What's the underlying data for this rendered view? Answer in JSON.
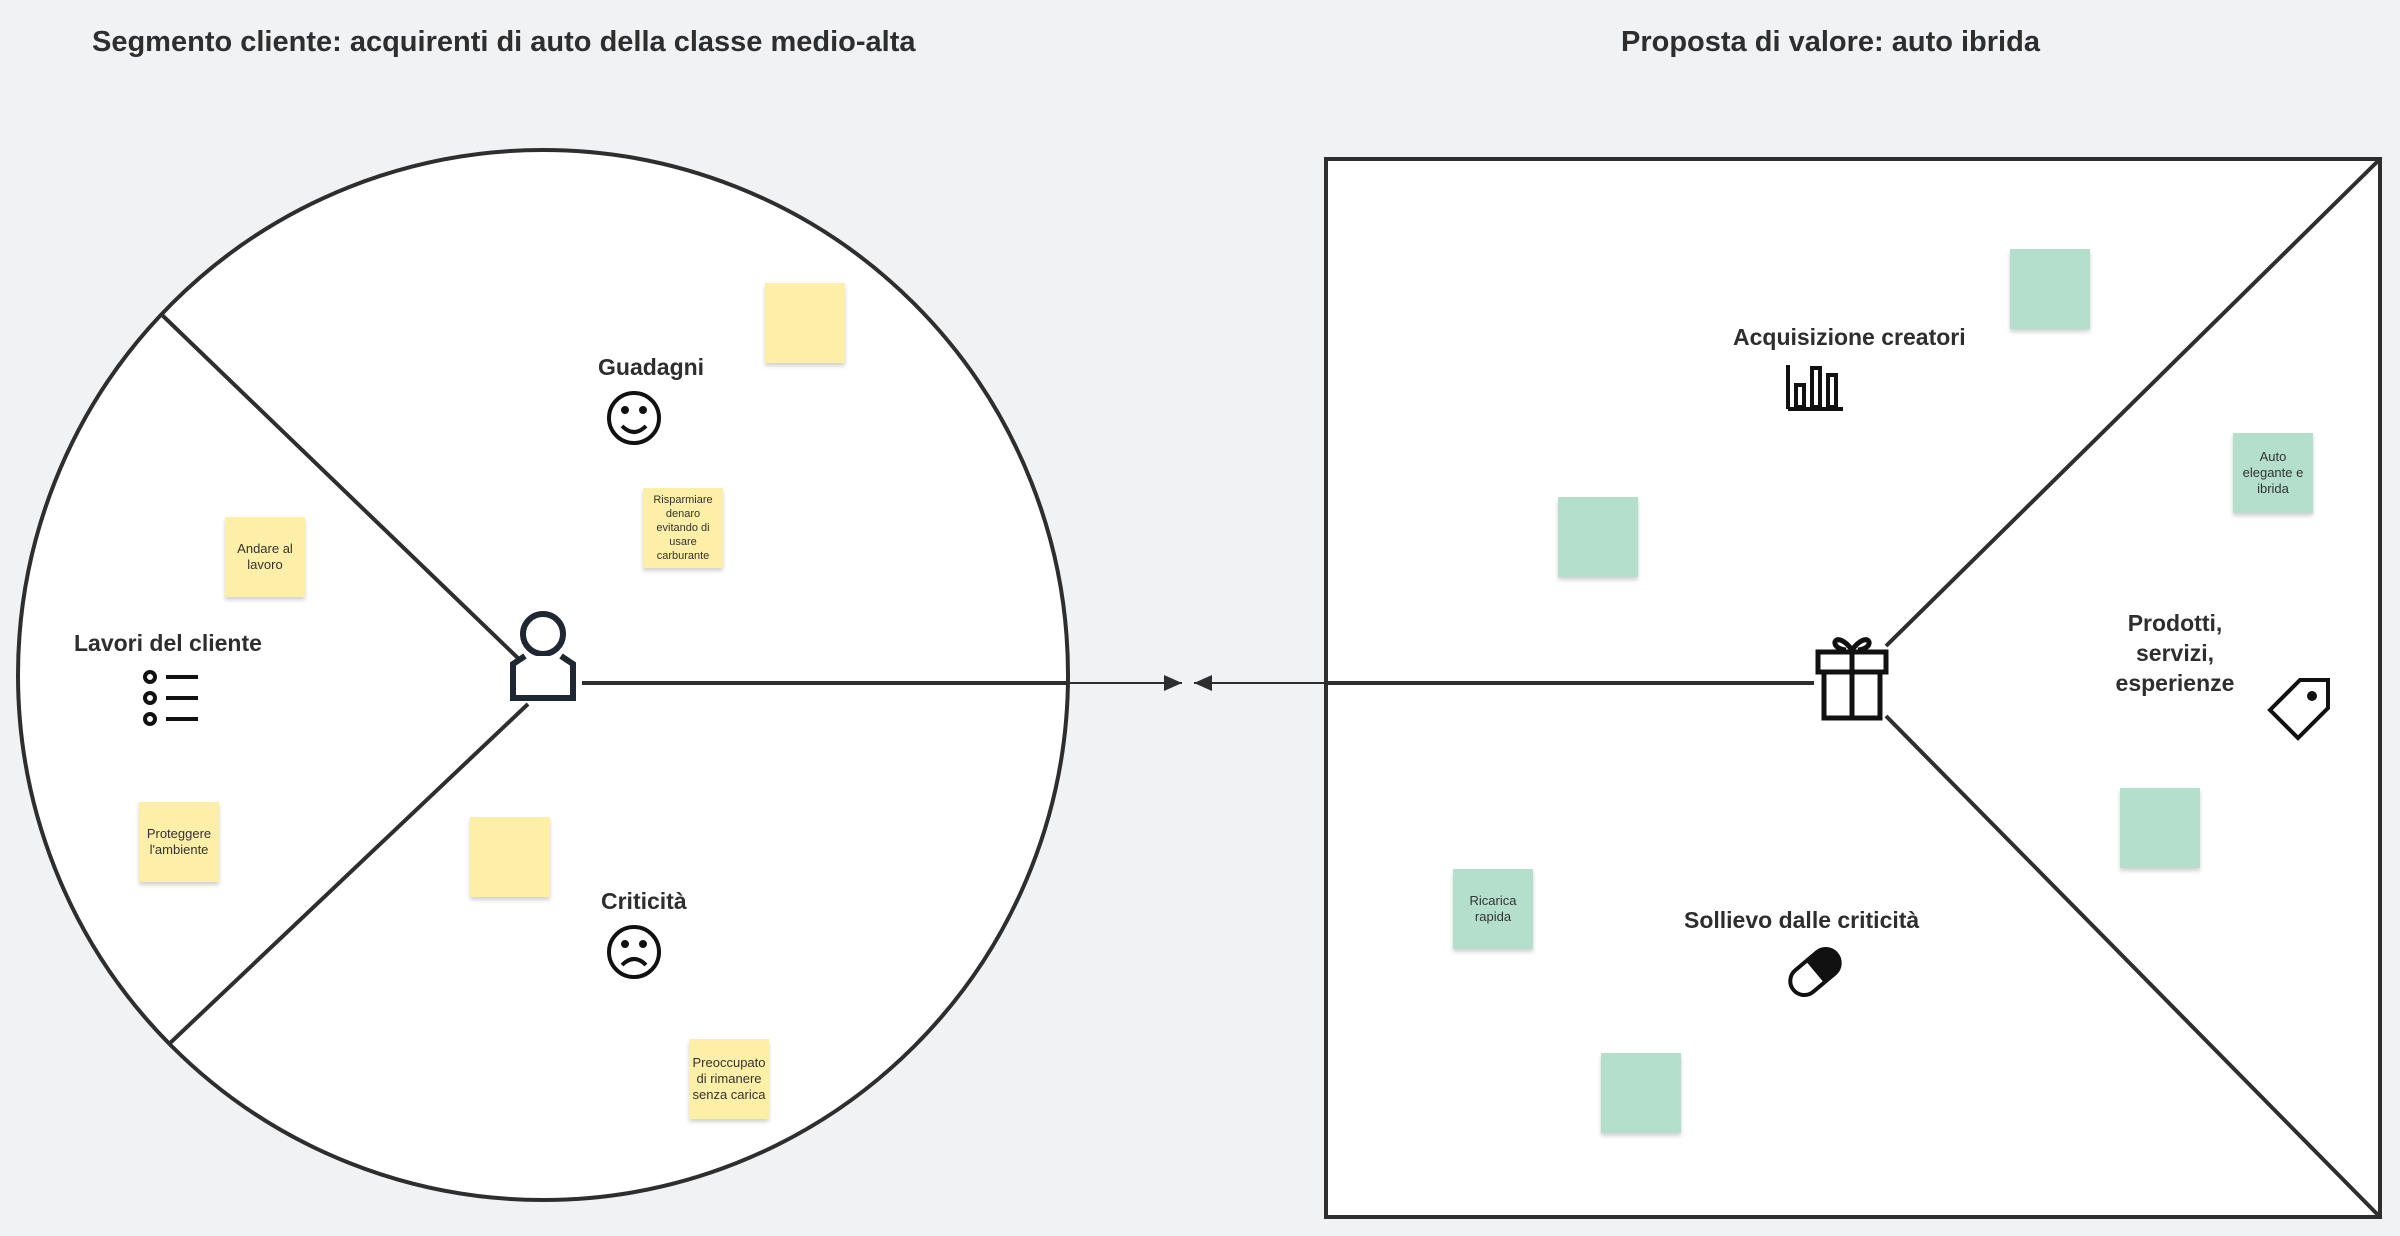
{
  "customer_segment": {
    "title": "Segmento cliente: acquirenti di auto della classe medio-alta",
    "gains_label": "Guadagni",
    "jobs_label": "Lavori del cliente",
    "pains_label": "Criticità",
    "stickies": [
      "",
      "Andare al lavoro",
      "Risparmiare denaro evitando di usare carburante",
      "Proteggere l'ambiente",
      "",
      "Preoccupato di rimanere senza carica"
    ]
  },
  "value_proposition": {
    "title": "Proposta di valore: auto ibrida",
    "gain_creators_label": "Acquisizione creatori",
    "products_label": "Prodotti, servizi, esperienze",
    "pain_relievers_label": "Sollievo dalle criticità",
    "stickies": [
      "",
      "",
      "Auto elegante e ibrida",
      "",
      "Ricarica rapida",
      ""
    ]
  },
  "colors": {
    "customer_sticky": "#fdefa7",
    "value_sticky": "#b5dfcd",
    "stroke": "#2e2e2e"
  },
  "icons": [
    "user-icon",
    "smiley-icon",
    "frown-icon",
    "list-icon",
    "gift-icon",
    "bar-chart-icon",
    "tag-icon",
    "pill-icon"
  ]
}
